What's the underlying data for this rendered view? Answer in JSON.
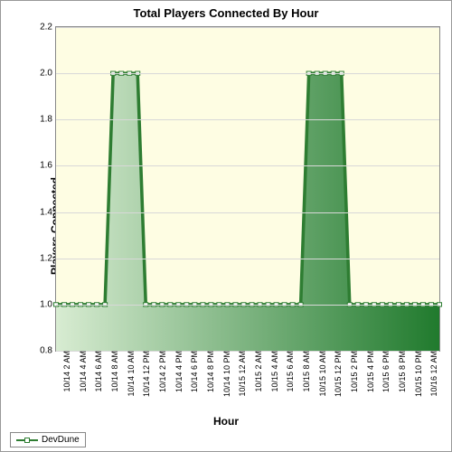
{
  "chart": {
    "type": "area",
    "title": "Total Players Connected By Hour",
    "title_fontsize": 13,
    "xlabel": "Hour",
    "ylabel": "Players Connected",
    "label_fontsize": 12,
    "tick_fontsize": 10,
    "background_color": "#fefde3",
    "grid_color": "#d8d8d8",
    "border_color": "#888888",
    "ylim": [
      0.8,
      2.2
    ],
    "ytick_step": 0.2,
    "yticks": [
      "0.8",
      "1.0",
      "1.2",
      "1.4",
      "1.6",
      "1.8",
      "2.0",
      "2.2"
    ],
    "xticks": [
      "10/14 2 AM",
      "10/14 4 AM",
      "10/14 6 AM",
      "10/14 8 AM",
      "10/14 10 AM",
      "10/14 12 PM",
      "10/14 2 PM",
      "10/14 4 PM",
      "10/14 6 PM",
      "10/14 8 PM",
      "10/14 10 PM",
      "10/15 12 AM",
      "10/15 2 AM",
      "10/15 4 AM",
      "10/15 6 AM",
      "10/15 8 AM",
      "10/15 10 AM",
      "10/15 12 PM",
      "10/15 2 PM",
      "10/15 4 PM",
      "10/15 6 PM",
      "10/15 8 PM",
      "10/15 10 PM",
      "10/16 12 AM"
    ],
    "series": {
      "name": "DevDune",
      "line_color": "#2e7d32",
      "fill_color_left": "#d8ecd2",
      "fill_color_right": "#207a2d",
      "marker_border": "#2e7d32",
      "marker_fill": "#ffffff",
      "marker_size": 5,
      "line_width": 1.5,
      "values": [
        1,
        1,
        1,
        1,
        1,
        1,
        1,
        2,
        2,
        2,
        2,
        1,
        1,
        1,
        1,
        1,
        1,
        1,
        1,
        1,
        1,
        1,
        1,
        1,
        1,
        1,
        1,
        1,
        1,
        1,
        1,
        2,
        2,
        2,
        2,
        2,
        1,
        1,
        1,
        1,
        1,
        1,
        1,
        1,
        1,
        1,
        1,
        1
      ]
    }
  },
  "legend": {
    "label": "DevDune"
  }
}
